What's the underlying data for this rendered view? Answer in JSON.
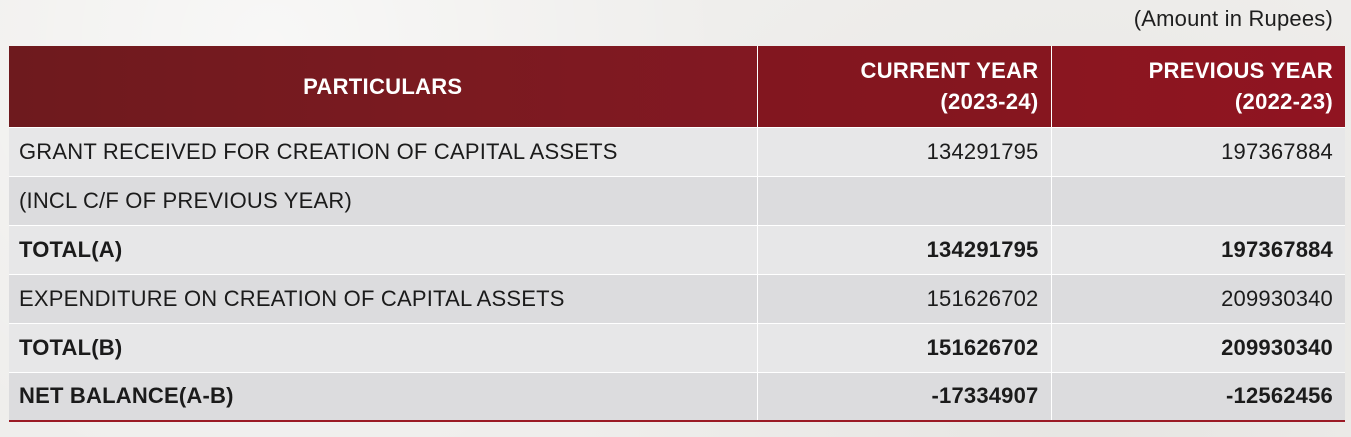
{
  "note": "(Amount in Rupees)",
  "table": {
    "headers": {
      "particulars": "PARTICULARS",
      "current_year_line1": "CURRENT YEAR",
      "current_year_line2": "(2023-24)",
      "previous_year_line1": "PREVIOUS YEAR",
      "previous_year_line2": "(2022-23)"
    },
    "rows": [
      {
        "particulars": "GRANT RECEIVED FOR CREATION OF CAPITAL ASSETS",
        "current": "134291795",
        "previous": "197367884"
      },
      {
        "particulars": "(INCL C/F OF PREVIOUS YEAR)",
        "current": "",
        "previous": ""
      },
      {
        "particulars": "TOTAL(A)",
        "current": "134291795",
        "previous": "197367884"
      },
      {
        "particulars": "EXPENDITURE ON CREATION OF CAPITAL ASSETS",
        "current": "151626702",
        "previous": "209930340"
      },
      {
        "particulars": "TOTAL(B)",
        "current": "151626702",
        "previous": "209930340"
      },
      {
        "particulars": "NET BALANCE(A-B)",
        "current": "-17334907",
        "previous": "-12562456"
      }
    ]
  },
  "colors": {
    "header_dark": "#6e1a1e",
    "header_light": "#901421",
    "row_light": "#e7e7e8",
    "row_dark": "#dcdcde"
  }
}
